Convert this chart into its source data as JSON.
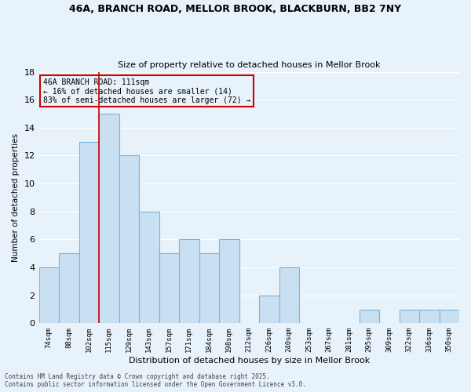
{
  "title_line1": "46A, BRANCH ROAD, MELLOR BROOK, BLACKBURN, BB2 7NY",
  "title_line2": "Size of property relative to detached houses in Mellor Brook",
  "xlabel": "Distribution of detached houses by size in Mellor Brook",
  "ylabel": "Number of detached properties",
  "categories": [
    "74sqm",
    "88sqm",
    "102sqm",
    "115sqm",
    "129sqm",
    "143sqm",
    "157sqm",
    "171sqm",
    "184sqm",
    "198sqm",
    "212sqm",
    "226sqm",
    "240sqm",
    "253sqm",
    "267sqm",
    "281sqm",
    "295sqm",
    "309sqm",
    "322sqm",
    "336sqm",
    "350sqm"
  ],
  "values": [
    4,
    5,
    13,
    15,
    12,
    8,
    5,
    6,
    5,
    6,
    0,
    2,
    4,
    0,
    0,
    0,
    1,
    0,
    1,
    1,
    1
  ],
  "bar_color": "#c9dff2",
  "bar_edge_color": "#7ab4d8",
  "bar_linewidth": 0.8,
  "vline_x_index": 2.5,
  "vline_color": "#cc0000",
  "annotation_line1": "46A BRANCH ROAD: 111sqm",
  "annotation_line2": "← 16% of detached houses are smaller (14)",
  "annotation_line3": "83% of semi-detached houses are larger (72) →",
  "annotation_box_color": "#cc0000",
  "ylim": [
    0,
    18
  ],
  "yticks": [
    0,
    2,
    4,
    6,
    8,
    10,
    12,
    14,
    16,
    18
  ],
  "background_color": "#e8f2fb",
  "grid_color": "#ffffff",
  "footer_line1": "Contains HM Land Registry data © Crown copyright and database right 2025.",
  "footer_line2": "Contains public sector information licensed under the Open Government Licence v3.0."
}
